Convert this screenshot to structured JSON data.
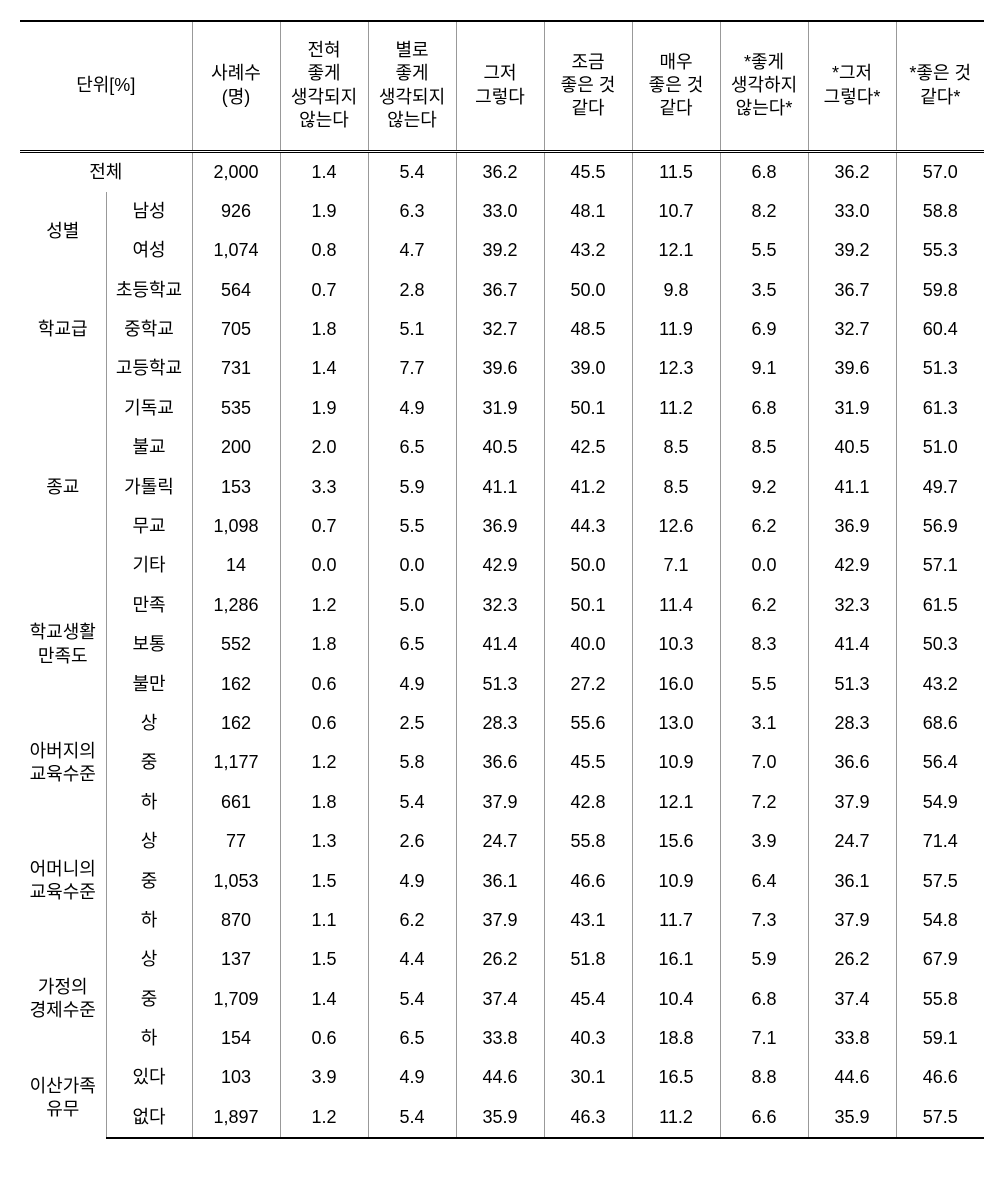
{
  "table": {
    "background_color": "#ffffff",
    "border_color": "#999999",
    "heavy_border_color": "#000000",
    "font_size_pt": 13,
    "columns": [
      {
        "key": "unit",
        "label": "단위[%]",
        "colspan": 2
      },
      {
        "key": "n",
        "label": "사례수\n(명)"
      },
      {
        "key": "c1",
        "label": "전혀\n좋게\n생각되지\n않는다"
      },
      {
        "key": "c2",
        "label": "별로\n좋게\n생각되지\n않는다"
      },
      {
        "key": "c3",
        "label": "그저\n그렇다"
      },
      {
        "key": "c4",
        "label": "조금\n좋은 것\n같다"
      },
      {
        "key": "c5",
        "label": "매우\n좋은 것\n같다"
      },
      {
        "key": "c6",
        "label": "*좋게\n생각하지\n않는다*"
      },
      {
        "key": "c7",
        "label": "*그저\n그렇다*"
      },
      {
        "key": "c8",
        "label": "*좋은 것\n같다*"
      }
    ],
    "total": {
      "label": "전체",
      "vals": [
        "2,000",
        "1.4",
        "5.4",
        "36.2",
        "45.5",
        "11.5",
        "6.8",
        "36.2",
        "57.0"
      ]
    },
    "groups": [
      {
        "name": "성별",
        "rows": [
          {
            "sub": "남성",
            "vals": [
              "926",
              "1.9",
              "6.3",
              "33.0",
              "48.1",
              "10.7",
              "8.2",
              "33.0",
              "58.8"
            ]
          },
          {
            "sub": "여성",
            "vals": [
              "1,074",
              "0.8",
              "4.7",
              "39.2",
              "43.2",
              "12.1",
              "5.5",
              "39.2",
              "55.3"
            ]
          }
        ]
      },
      {
        "name": "학교급",
        "rows": [
          {
            "sub": "초등학교",
            "vals": [
              "564",
              "0.7",
              "2.8",
              "36.7",
              "50.0",
              "9.8",
              "3.5",
              "36.7",
              "59.8"
            ]
          },
          {
            "sub": "중학교",
            "vals": [
              "705",
              "1.8",
              "5.1",
              "32.7",
              "48.5",
              "11.9",
              "6.9",
              "32.7",
              "60.4"
            ]
          },
          {
            "sub": "고등학교",
            "vals": [
              "731",
              "1.4",
              "7.7",
              "39.6",
              "39.0",
              "12.3",
              "9.1",
              "39.6",
              "51.3"
            ]
          }
        ]
      },
      {
        "name": "종교",
        "rows": [
          {
            "sub": "기독교",
            "vals": [
              "535",
              "1.9",
              "4.9",
              "31.9",
              "50.1",
              "11.2",
              "6.8",
              "31.9",
              "61.3"
            ]
          },
          {
            "sub": "불교",
            "vals": [
              "200",
              "2.0",
              "6.5",
              "40.5",
              "42.5",
              "8.5",
              "8.5",
              "40.5",
              "51.0"
            ]
          },
          {
            "sub": "가톨릭",
            "vals": [
              "153",
              "3.3",
              "5.9",
              "41.1",
              "41.2",
              "8.5",
              "9.2",
              "41.1",
              "49.7"
            ]
          },
          {
            "sub": "무교",
            "vals": [
              "1,098",
              "0.7",
              "5.5",
              "36.9",
              "44.3",
              "12.6",
              "6.2",
              "36.9",
              "56.9"
            ]
          },
          {
            "sub": "기타",
            "vals": [
              "14",
              "0.0",
              "0.0",
              "42.9",
              "50.0",
              "7.1",
              "0.0",
              "42.9",
              "57.1"
            ]
          }
        ]
      },
      {
        "name": "학교생활\n만족도",
        "rows": [
          {
            "sub": "만족",
            "vals": [
              "1,286",
              "1.2",
              "5.0",
              "32.3",
              "50.1",
              "11.4",
              "6.2",
              "32.3",
              "61.5"
            ]
          },
          {
            "sub": "보통",
            "vals": [
              "552",
              "1.8",
              "6.5",
              "41.4",
              "40.0",
              "10.3",
              "8.3",
              "41.4",
              "50.3"
            ]
          },
          {
            "sub": "불만",
            "vals": [
              "162",
              "0.6",
              "4.9",
              "51.3",
              "27.2",
              "16.0",
              "5.5",
              "51.3",
              "43.2"
            ]
          }
        ]
      },
      {
        "name": "아버지의\n교육수준",
        "rows": [
          {
            "sub": "상",
            "vals": [
              "162",
              "0.6",
              "2.5",
              "28.3",
              "55.6",
              "13.0",
              "3.1",
              "28.3",
              "68.6"
            ]
          },
          {
            "sub": "중",
            "vals": [
              "1,177",
              "1.2",
              "5.8",
              "36.6",
              "45.5",
              "10.9",
              "7.0",
              "36.6",
              "56.4"
            ]
          },
          {
            "sub": "하",
            "vals": [
              "661",
              "1.8",
              "5.4",
              "37.9",
              "42.8",
              "12.1",
              "7.2",
              "37.9",
              "54.9"
            ]
          }
        ]
      },
      {
        "name": "어머니의\n교육수준",
        "rows": [
          {
            "sub": "상",
            "vals": [
              "77",
              "1.3",
              "2.6",
              "24.7",
              "55.8",
              "15.6",
              "3.9",
              "24.7",
              "71.4"
            ]
          },
          {
            "sub": "중",
            "vals": [
              "1,053",
              "1.5",
              "4.9",
              "36.1",
              "46.6",
              "10.9",
              "6.4",
              "36.1",
              "57.5"
            ]
          },
          {
            "sub": "하",
            "vals": [
              "870",
              "1.1",
              "6.2",
              "37.9",
              "43.1",
              "11.7",
              "7.3",
              "37.9",
              "54.8"
            ]
          }
        ]
      },
      {
        "name": "가정의\n경제수준",
        "rows": [
          {
            "sub": "상",
            "vals": [
              "137",
              "1.5",
              "4.4",
              "26.2",
              "51.8",
              "16.1",
              "5.9",
              "26.2",
              "67.9"
            ]
          },
          {
            "sub": "중",
            "vals": [
              "1,709",
              "1.4",
              "5.4",
              "37.4",
              "45.4",
              "10.4",
              "6.8",
              "37.4",
              "55.8"
            ]
          },
          {
            "sub": "하",
            "vals": [
              "154",
              "0.6",
              "6.5",
              "33.8",
              "40.3",
              "18.8",
              "7.1",
              "33.8",
              "59.1"
            ]
          }
        ]
      },
      {
        "name": "이산가족\n유무",
        "rows": [
          {
            "sub": "있다",
            "vals": [
              "103",
              "3.9",
              "4.9",
              "44.6",
              "30.1",
              "16.5",
              "8.8",
              "44.6",
              "46.6"
            ]
          },
          {
            "sub": "없다",
            "vals": [
              "1,897",
              "1.2",
              "5.4",
              "35.9",
              "46.3",
              "11.2",
              "6.6",
              "35.9",
              "57.5"
            ]
          }
        ]
      }
    ]
  }
}
